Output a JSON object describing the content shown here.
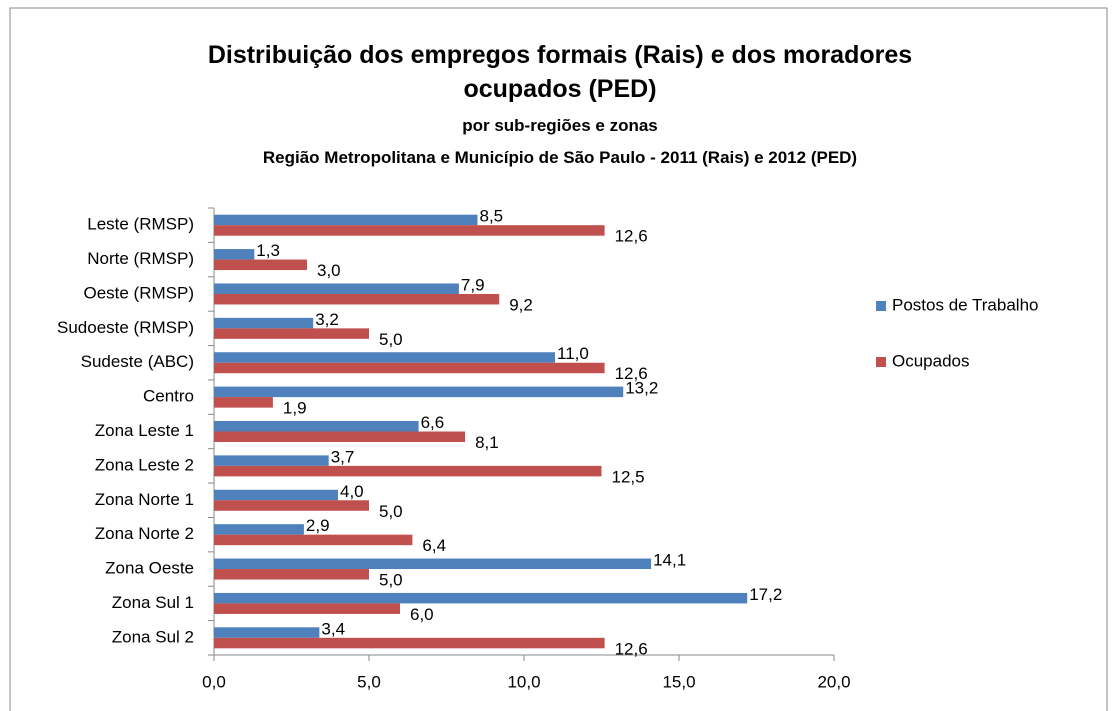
{
  "chart_data": {
    "type": "barh",
    "title": "Distribuição dos empregos formais (Rais) e dos moradores ocupados (PED)",
    "subtitle": [
      "por sub-regiões e zonas",
      "Região Metropolitana e Município de São Paulo - 2011 (Rais) e 2012 (PED)"
    ],
    "categories": [
      "Leste (RMSP)",
      "Norte (RMSP)",
      "Oeste (RMSP)",
      "Sudoeste (RMSP)",
      "Sudeste (ABC)",
      "Centro",
      "Zona Leste 1",
      "Zona Leste 2",
      "Zona Norte 1",
      "Zona Norte 2",
      "Zona Oeste",
      "Zona Sul 1",
      "Zona Sul 2"
    ],
    "series": [
      {
        "name": "Postos de Trabalho",
        "color": "#4f81bd",
        "values": [
          8.5,
          1.3,
          7.9,
          3.2,
          11.0,
          13.2,
          6.6,
          3.7,
          4.0,
          2.9,
          14.1,
          17.2,
          3.4
        ],
        "value_labels": [
          "8,5",
          "1,3",
          "7,9",
          "3,2",
          "11,0",
          "13,2",
          "6,6",
          "3,7",
          "4,0",
          "2,9",
          "14,1",
          "17,2",
          "3,4"
        ]
      },
      {
        "name": "Ocupados",
        "color": "#c0504d",
        "values": [
          12.6,
          3.0,
          9.2,
          5.0,
          12.6,
          1.9,
          8.1,
          12.5,
          5.0,
          6.4,
          5.0,
          6.0,
          12.6
        ],
        "value_labels": [
          "12,6",
          "3,0",
          "9,2",
          "5,0",
          "12,6",
          "1,9",
          "8,1",
          "12,5",
          "5,0",
          "6,4",
          "5,0",
          "6,0",
          "12,6"
        ]
      }
    ],
    "xlim": [
      0,
      20
    ],
    "xticks": [
      {
        "value": 0,
        "label": "0,0"
      },
      {
        "value": 5,
        "label": "5,0"
      },
      {
        "value": 10,
        "label": "10,0"
      },
      {
        "value": 15,
        "label": "15,0"
      },
      {
        "value": 20,
        "label": "20,0"
      }
    ],
    "grid": false,
    "legend": "right"
  }
}
